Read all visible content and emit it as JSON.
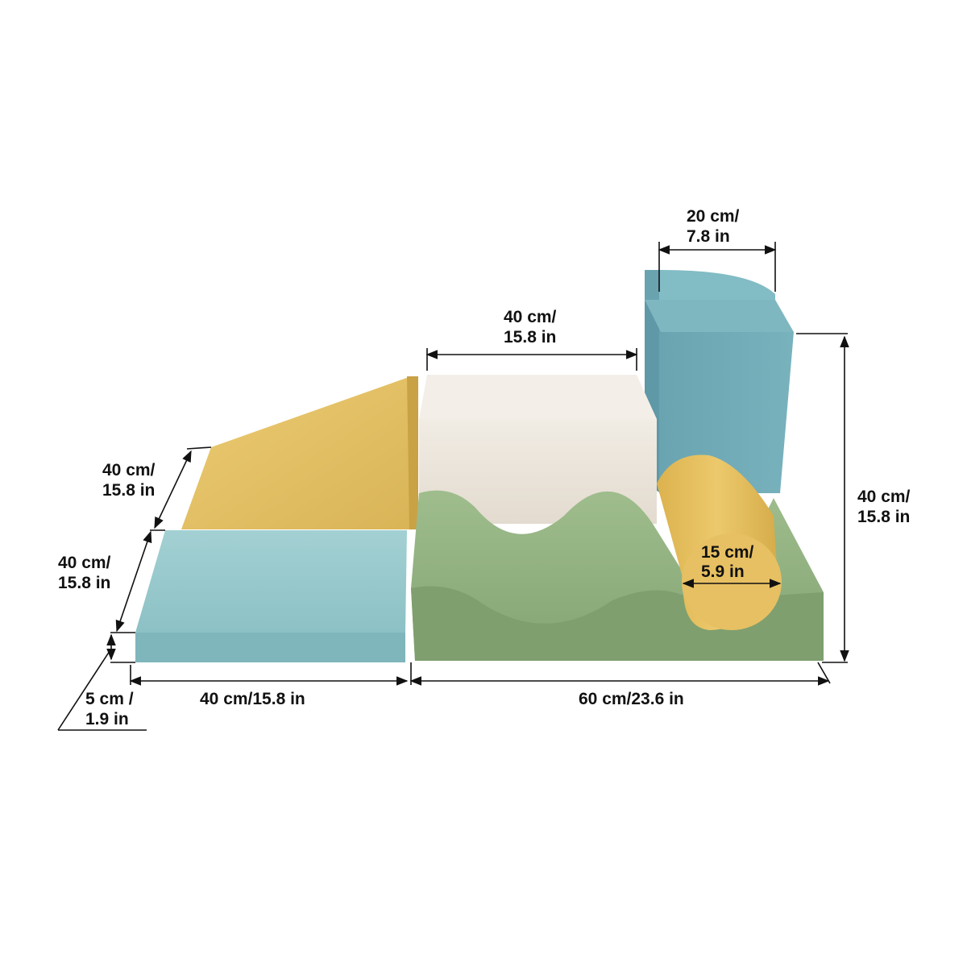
{
  "colors": {
    "mustard": "#e3bf62",
    "light_blue": "#92c5c9",
    "teal": "#72acb8",
    "cream": "#ece6dc",
    "sage_green": "#90af7f",
    "dimension_line": "#111111"
  },
  "pieces": [
    "wedge",
    "mat",
    "cube",
    "wave",
    "tall-block",
    "quarter-round",
    "cylinder"
  ],
  "dimensions": {
    "top_block_width": {
      "line1": "20 cm/",
      "line2": "7.8 in"
    },
    "cube_width": {
      "line1": "40 cm/",
      "line2": "15.8 in"
    },
    "wedge_depth": {
      "line1": "40 cm/",
      "line2": "15.8 in"
    },
    "mat_depth": {
      "line1": "40 cm/",
      "line2": "15.8 in"
    },
    "mat_thickness": {
      "line1": "5 cm /",
      "line2": "1.9 in"
    },
    "mat_width": "40 cm/15.8 in",
    "wave_width": "60 cm/23.6 in",
    "total_height": {
      "line1": "40 cm/",
      "line2": "15.8 in"
    },
    "cylinder_diameter": {
      "line1": "15 cm/",
      "line2": "5.9 in"
    }
  }
}
